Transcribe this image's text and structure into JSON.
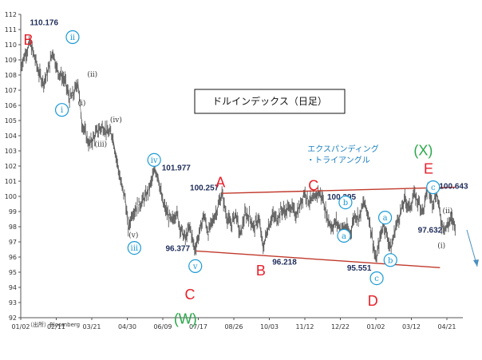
{
  "chart_data": {
    "type": "line",
    "title": "ドルインデックス（日足）",
    "source": "（出所）Bloomberg",
    "note_lines": [
      "エクスパンディング",
      "・トライアングル"
    ],
    "ylim": [
      92,
      112
    ],
    "yticks": [
      92,
      93,
      94,
      95,
      96,
      97,
      98,
      99,
      100,
      101,
      102,
      103,
      104,
      105,
      106,
      107,
      108,
      109,
      110,
      111,
      112
    ],
    "xlabels": [
      "01/02",
      "02/11",
      "03/21",
      "04/30",
      "06/09",
      "07/17",
      "08/26",
      "10/03",
      "11/12",
      "12/22",
      "01/02",
      "03/12",
      "04/21"
    ],
    "series": [
      {
        "values": [
          [
            0,
            108.6
          ],
          [
            6,
            109.4
          ],
          [
            12,
            110.1
          ],
          [
            18,
            109.2
          ],
          [
            24,
            108.1
          ],
          [
            30,
            107.5
          ],
          [
            36,
            108.3
          ],
          [
            42,
            109.6
          ],
          [
            48,
            108.3
          ],
          [
            54,
            107.9
          ],
          [
            58,
            107.6
          ],
          [
            64,
            106.4
          ],
          [
            70,
            106.8
          ],
          [
            75,
            107.6
          ],
          [
            80,
            104.9
          ],
          [
            85,
            104.1
          ],
          [
            90,
            103.4
          ],
          [
            96,
            103.9
          ],
          [
            102,
            104.4
          ],
          [
            108,
            104.6
          ],
          [
            114,
            104.2
          ],
          [
            120,
            104.1
          ],
          [
            126,
            102.4
          ],
          [
            132,
            100.7
          ],
          [
            137,
            99.9
          ],
          [
            141,
            97.8
          ],
          [
            146,
            98.9
          ],
          [
            152,
            99.3
          ],
          [
            158,
            99.6
          ],
          [
            164,
            100.0
          ],
          [
            170,
            100.7
          ],
          [
            176,
            101.8
          ],
          [
            180,
            101.4
          ],
          [
            186,
            99.6
          ],
          [
            192,
            98.9
          ],
          [
            198,
            98.3
          ],
          [
            204,
            99.0
          ],
          [
            210,
            97.8
          ],
          [
            216,
            97.2
          ],
          [
            222,
            98.0
          ],
          [
            228,
            96.5
          ],
          [
            234,
            97.5
          ],
          [
            240,
            98.8
          ],
          [
            246,
            97.6
          ],
          [
            252,
            98.4
          ],
          [
            258,
            99.2
          ],
          [
            264,
            100.2
          ],
          [
            270,
            98.7
          ],
          [
            276,
            98.1
          ],
          [
            282,
            98.9
          ],
          [
            288,
            97.4
          ],
          [
            294,
            98.8
          ],
          [
            300,
            98.7
          ],
          [
            306,
            97.9
          ],
          [
            312,
            98.6
          ],
          [
            318,
            96.6
          ],
          [
            324,
            97.9
          ],
          [
            330,
            98.7
          ],
          [
            336,
            98.5
          ],
          [
            342,
            99.1
          ],
          [
            348,
            99.0
          ],
          [
            354,
            99.4
          ],
          [
            360,
            98.8
          ],
          [
            366,
            99.3
          ],
          [
            372,
            100.3
          ],
          [
            378,
            99.7
          ],
          [
            384,
            99.7
          ],
          [
            390,
            100.3
          ],
          [
            396,
            99.9
          ],
          [
            402,
            98.6
          ],
          [
            408,
            98.0
          ],
          [
            414,
            98.3
          ],
          [
            420,
            97.8
          ],
          [
            426,
            98.0
          ],
          [
            432,
            97.5
          ],
          [
            438,
            98.8
          ],
          [
            444,
            98.6
          ],
          [
            450,
            99.6
          ],
          [
            456,
            98.8
          ],
          [
            462,
            97.0
          ],
          [
            466,
            95.7
          ],
          [
            470,
            96.9
          ],
          [
            476,
            98.3
          ],
          [
            482,
            97.1
          ],
          [
            486,
            96.6
          ],
          [
            492,
            98.0
          ],
          [
            498,
            98.9
          ],
          [
            504,
            99.8
          ],
          [
            510,
            99.2
          ],
          [
            516,
            100.1
          ],
          [
            522,
            99.6
          ],
          [
            528,
            99.0
          ],
          [
            534,
            100.6
          ],
          [
            540,
            99.6
          ],
          [
            546,
            100.2
          ],
          [
            552,
            98.2
          ],
          [
            558,
            97.9
          ],
          [
            564,
            98.5
          ],
          [
            570,
            98.1
          ]
        ]
      }
    ],
    "trendlines": [
      {
        "from": [
          264,
          100.2
        ],
        "to": [
          570,
          100.6
        ]
      },
      {
        "from": [
          230,
          96.4
        ],
        "to": [
          550,
          95.3
        ]
      }
    ],
    "annotations": [
      {
        "text": "110.176",
        "x": 12,
        "y": 111.3,
        "kind": "val"
      },
      {
        "text": "B",
        "x": 10,
        "y": 110.0,
        "kind": "red"
      },
      {
        "text": "ii",
        "x": 68,
        "y": 110.5,
        "kind": "circle"
      },
      {
        "text": "i",
        "x": 54,
        "y": 105.7,
        "kind": "circle"
      },
      {
        "text": "(ii)",
        "x": 94,
        "y": 107.9,
        "kind": "roman"
      },
      {
        "text": "(i)",
        "x": 80,
        "y": 106.0,
        "kind": "roman"
      },
      {
        "text": "(iv)",
        "x": 125,
        "y": 104.9,
        "kind": "roman"
      },
      {
        "text": "(iii)",
        "x": 105,
        "y": 103.3,
        "kind": "roman"
      },
      {
        "text": "iv",
        "x": 175,
        "y": 102.4,
        "kind": "circle"
      },
      {
        "text": "101.977",
        "x": 185,
        "y": 101.7,
        "kind": "val"
      },
      {
        "text": "(v)",
        "x": 148,
        "y": 97.3,
        "kind": "roman"
      },
      {
        "text": "iii",
        "x": 149,
        "y": 96.6,
        "kind": "circle"
      },
      {
        "text": "100.257",
        "x": 222,
        "y": 100.4,
        "kind": "val"
      },
      {
        "text": "A",
        "x": 262,
        "y": 100.6,
        "kind": "red"
      },
      {
        "text": "96.377",
        "x": 190,
        "y": 96.4,
        "kind": "val"
      },
      {
        "text": "v",
        "x": 229,
        "y": 95.4,
        "kind": "circle"
      },
      {
        "text": "C",
        "x": 222,
        "y": 93.2,
        "kind": "red"
      },
      {
        "text": "(W)",
        "x": 216,
        "y": 91.6,
        "kind": "green"
      },
      {
        "text": "B",
        "x": 315,
        "y": 94.8,
        "kind": "red"
      },
      {
        "text": "96.218",
        "x": 330,
        "y": 95.5,
        "kind": "val"
      },
      {
        "text": "C",
        "x": 384,
        "y": 100.4,
        "kind": "red"
      },
      {
        "text": "100.395",
        "x": 402,
        "y": 99.8,
        "kind": "val"
      },
      {
        "text": "b",
        "x": 426,
        "y": 99.6,
        "kind": "circle"
      },
      {
        "text": "a",
        "x": 424,
        "y": 97.4,
        "kind": "circle"
      },
      {
        "text": "95.551",
        "x": 428,
        "y": 95.1,
        "kind": "val"
      },
      {
        "text": "c",
        "x": 467,
        "y": 94.6,
        "kind": "circle"
      },
      {
        "text": "D",
        "x": 462,
        "y": 92.8,
        "kind": "red"
      },
      {
        "text": "a",
        "x": 478,
        "y": 98.6,
        "kind": "circle"
      },
      {
        "text": "b",
        "x": 485,
        "y": 95.8,
        "kind": "circle"
      },
      {
        "text": "(X)",
        "x": 528,
        "y": 102.7,
        "kind": "green"
      },
      {
        "text": "E",
        "x": 535,
        "y": 101.5,
        "kind": "red"
      },
      {
        "text": "c",
        "x": 541,
        "y": 100.6,
        "kind": "circle"
      },
      {
        "text": "100.643",
        "x": 549,
        "y": 100.5,
        "kind": "val"
      },
      {
        "text": "(ii)",
        "x": 560,
        "y": 98.9,
        "kind": "roman"
      },
      {
        "text": "97.632",
        "x": 521,
        "y": 97.6,
        "kind": "val"
      },
      {
        "text": "(i)",
        "x": 552,
        "y": 96.6,
        "kind": "roman"
      }
    ]
  }
}
